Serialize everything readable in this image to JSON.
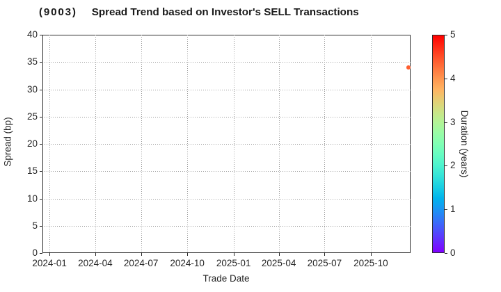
{
  "chart_data": {
    "type": "scatter",
    "title": "(9003)   Spread Trend based on Investor's SELL Transactions",
    "title_parts": {
      "code": "(9003)",
      "text": "Spread Trend based on Investor's SELL Transactions"
    },
    "xlabel": "Trade Date",
    "ylabel": "Spread (bp)",
    "x_tick_labels": [
      "2024-01",
      "2024-04",
      "2024-07",
      "2024-10",
      "2025-01",
      "2025-04",
      "2025-07",
      "2025-10"
    ],
    "y_ticks": [
      0,
      5,
      10,
      15,
      20,
      25,
      30,
      35,
      40
    ],
    "ylim": [
      0,
      40
    ],
    "xlim": [
      "2023-12-18",
      "2025-12-19"
    ],
    "grid": true,
    "points": [
      {
        "trade_date": "2025-12-15",
        "spread_bp": 34,
        "duration_years": 4.4
      }
    ],
    "colorbar": {
      "label": "Duration (years)",
      "min": 0,
      "max": 5,
      "ticks": [
        0,
        1,
        2,
        3,
        4,
        5
      ],
      "colormap": "rainbow"
    },
    "colors": {
      "spine": "#2b2b2b",
      "grid": "#9c9c9c",
      "text": "#262626",
      "title": "#1a1a1a"
    }
  }
}
